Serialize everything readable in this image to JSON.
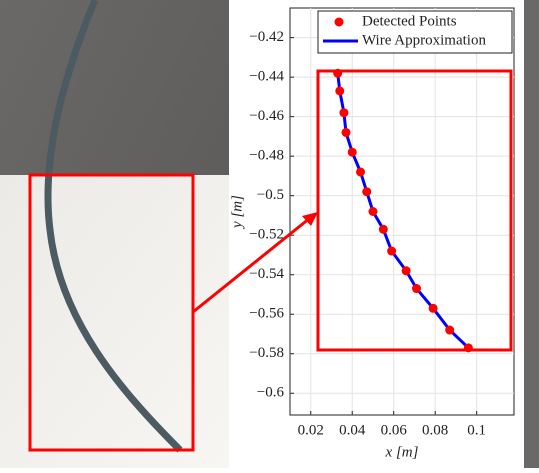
{
  "chart_data": {
    "type": "scatter",
    "xlabel": "x [m]",
    "ylabel": "y [m]",
    "xlim": [
      0.01,
      0.118
    ],
    "ylim": [
      -0.611,
      -0.405
    ],
    "xticks": [
      0.02,
      0.04,
      0.06,
      0.08,
      0.1
    ],
    "yticks": [
      {
        "value": -0.42,
        "label": "−0.42"
      },
      {
        "value": -0.44,
        "label": "−0.44"
      },
      {
        "value": -0.46,
        "label": "−0.46"
      },
      {
        "value": -0.48,
        "label": "−0.48"
      },
      {
        "value": -0.5,
        "label": "−0.5"
      },
      {
        "value": -0.52,
        "label": "−0.52"
      },
      {
        "value": -0.54,
        "label": "−0.54"
      },
      {
        "value": -0.56,
        "label": "−0.56"
      },
      {
        "value": -0.58,
        "label": "−0.58"
      },
      {
        "value": -0.6,
        "label": "−0.6"
      }
    ],
    "grid": true,
    "legend": "upper right",
    "series": [
      {
        "name": "Detected Points",
        "color": "#ff0000",
        "mode": "markers",
        "x": [
          0.033,
          0.034,
          0.036,
          0.037,
          0.04,
          0.044,
          0.047,
          0.05,
          0.055,
          0.059,
          0.066,
          0.071,
          0.079,
          0.087,
          0.096
        ],
        "values": [
          -0.438,
          -0.447,
          -0.458,
          -0.468,
          -0.478,
          -0.488,
          -0.498,
          -0.508,
          -0.517,
          -0.528,
          -0.538,
          -0.547,
          -0.557,
          -0.568,
          -0.577
        ]
      },
      {
        "name": "Wire Approximation",
        "color": "#0000ff",
        "mode": "line",
        "x": [
          0.033,
          0.034,
          0.036,
          0.037,
          0.04,
          0.044,
          0.047,
          0.05,
          0.055,
          0.059,
          0.066,
          0.071,
          0.079,
          0.087,
          0.096
        ],
        "values": [
          -0.438,
          -0.447,
          -0.458,
          -0.468,
          -0.478,
          -0.488,
          -0.498,
          -0.508,
          -0.517,
          -0.528,
          -0.538,
          -0.547,
          -0.557,
          -0.568,
          -0.577
        ]
      }
    ]
  }
}
